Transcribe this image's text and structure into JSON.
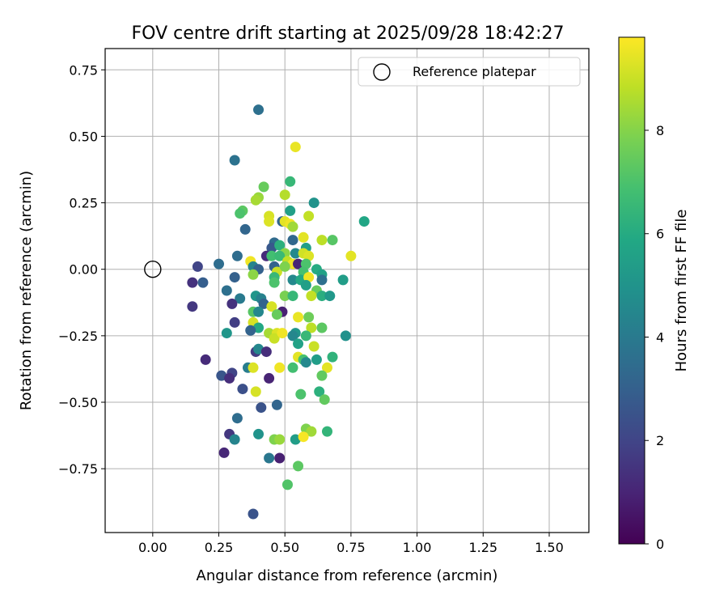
{
  "chart_data": {
    "type": "scatter",
    "title": "FOV centre drift starting at 2025/09/28 18:42:27",
    "xlabel": "Angular distance from reference (arcmin)",
    "ylabel": "Rotation from reference (arcmin)",
    "colorbar_label": "Hours from first FF file",
    "xlim": [
      -0.18,
      1.65
    ],
    "ylim": [
      -0.99,
      0.83
    ],
    "xticks": [
      "0.00",
      "0.25",
      "0.50",
      "0.75",
      "1.00",
      "1.25",
      "1.50"
    ],
    "xtick_values": [
      0,
      0.25,
      0.5,
      0.75,
      1.0,
      1.25,
      1.5
    ],
    "yticks": [
      "0.75",
      "0.50",
      "0.25",
      "0.00",
      "−0.25",
      "−0.50",
      "−0.75"
    ],
    "ytick_values": [
      0.75,
      0.5,
      0.25,
      0,
      -0.25,
      -0.5,
      -0.75
    ],
    "colorbar_range": [
      0,
      9.8
    ],
    "colorbar_ticks": [
      "0",
      "2",
      "4",
      "6",
      "8"
    ],
    "colorbar_tick_values": [
      0,
      2,
      4,
      6,
      8
    ],
    "grid": true,
    "legend": {
      "label": "Reference platepar",
      "position": "top-right"
    },
    "reference_point": {
      "x": 0.0,
      "y": 0.0
    },
    "points": [
      [
        0.4,
        0.6,
        3.6
      ],
      [
        0.31,
        0.41,
        3.7
      ],
      [
        0.54,
        0.46,
        9.5
      ],
      [
        0.52,
        0.33,
        6.5
      ],
      [
        0.42,
        0.31,
        7.5
      ],
      [
        0.4,
        0.27,
        8.3
      ],
      [
        0.39,
        0.26,
        8.5
      ],
      [
        0.5,
        0.28,
        8.7
      ],
      [
        0.61,
        0.25,
        5.0
      ],
      [
        0.34,
        0.22,
        7.3
      ],
      [
        0.33,
        0.21,
        7.0
      ],
      [
        0.52,
        0.22,
        5.5
      ],
      [
        0.44,
        0.2,
        9.2
      ],
      [
        0.59,
        0.2,
        8.9
      ],
      [
        0.49,
        0.18,
        3.2
      ],
      [
        0.5,
        0.18,
        9.4
      ],
      [
        0.52,
        0.17,
        9.6
      ],
      [
        0.53,
        0.16,
        8.4
      ],
      [
        0.44,
        0.18,
        9.3
      ],
      [
        0.35,
        0.15,
        3.2
      ],
      [
        0.8,
        0.18,
        5.8
      ],
      [
        0.57,
        0.12,
        9.4
      ],
      [
        0.64,
        0.11,
        8.8
      ],
      [
        0.68,
        0.11,
        7.2
      ],
      [
        0.53,
        0.11,
        3.3
      ],
      [
        0.46,
        0.1,
        3.4
      ],
      [
        0.45,
        0.08,
        2.7
      ],
      [
        0.48,
        0.09,
        6.2
      ],
      [
        0.58,
        0.08,
        5.5
      ],
      [
        0.5,
        0.06,
        8.1
      ],
      [
        0.54,
        0.06,
        4.6
      ],
      [
        0.57,
        0.06,
        9.1
      ],
      [
        0.59,
        0.05,
        9.3
      ],
      [
        0.75,
        0.05,
        9.4
      ],
      [
        0.32,
        0.05,
        3.5
      ],
      [
        0.37,
        0.03,
        9.6
      ],
      [
        0.43,
        0.05,
        1.2
      ],
      [
        0.45,
        0.05,
        6.8
      ],
      [
        0.48,
        0.05,
        6.6
      ],
      [
        0.46,
        0.01,
        3.1
      ],
      [
        0.51,
        0.03,
        8.9
      ],
      [
        0.53,
        0.02,
        9.6
      ],
      [
        0.55,
        0.02,
        1.0
      ],
      [
        0.58,
        0.02,
        7.0
      ],
      [
        0.62,
        0.0,
        6.0
      ],
      [
        0.38,
        0.01,
        4.4
      ],
      [
        0.47,
        -0.01,
        9.0
      ],
      [
        0.5,
        0.01,
        7.9
      ],
      [
        0.4,
        0.0,
        3.0
      ],
      [
        0.25,
        0.02,
        3.5
      ],
      [
        0.17,
        0.01,
        2.0
      ],
      [
        0.57,
        -0.01,
        6.9
      ],
      [
        0.64,
        -0.02,
        5.6
      ],
      [
        0.38,
        -0.02,
        8.1
      ],
      [
        0.46,
        -0.03,
        6.5
      ],
      [
        0.53,
        -0.04,
        4.6
      ],
      [
        0.56,
        -0.04,
        5.9
      ],
      [
        0.59,
        -0.03,
        9.6
      ],
      [
        0.64,
        -0.04,
        3.6
      ],
      [
        0.72,
        -0.04,
        5.4
      ],
      [
        0.15,
        -0.05,
        1.4
      ],
      [
        0.19,
        -0.05,
        2.9
      ],
      [
        0.31,
        -0.03,
        3.0
      ],
      [
        0.46,
        -0.05,
        7.0
      ],
      [
        0.58,
        -0.06,
        5.5
      ],
      [
        0.62,
        -0.08,
        7.5
      ],
      [
        0.28,
        -0.08,
        3.6
      ],
      [
        0.39,
        -0.1,
        5.1
      ],
      [
        0.41,
        -0.11,
        4.3
      ],
      [
        0.5,
        -0.1,
        7.8
      ],
      [
        0.53,
        -0.1,
        6.5
      ],
      [
        0.6,
        -0.1,
        8.9
      ],
      [
        0.64,
        -0.1,
        6.1
      ],
      [
        0.67,
        -0.1,
        5.2
      ],
      [
        0.33,
        -0.11,
        4.0
      ],
      [
        0.42,
        -0.13,
        3.1
      ],
      [
        0.3,
        -0.13,
        1.4
      ],
      [
        0.15,
        -0.14,
        1.6
      ],
      [
        0.45,
        -0.14,
        9.2
      ],
      [
        0.38,
        -0.16,
        7.2
      ],
      [
        0.4,
        -0.16,
        4.5
      ],
      [
        0.49,
        -0.16,
        0.9
      ],
      [
        0.47,
        -0.17,
        7.5
      ],
      [
        0.55,
        -0.18,
        9.5
      ],
      [
        0.59,
        -0.18,
        7.6
      ],
      [
        0.38,
        -0.2,
        9.2
      ],
      [
        0.31,
        -0.2,
        1.8
      ],
      [
        0.4,
        -0.22,
        5.9
      ],
      [
        0.37,
        -0.23,
        3.1
      ],
      [
        0.28,
        -0.24,
        5.1
      ],
      [
        0.44,
        -0.24,
        8.5
      ],
      [
        0.47,
        -0.24,
        9.3
      ],
      [
        0.54,
        -0.24,
        5.1
      ],
      [
        0.6,
        -0.22,
        8.8
      ],
      [
        0.64,
        -0.22,
        7.3
      ],
      [
        0.73,
        -0.25,
        4.9
      ],
      [
        0.53,
        -0.25,
        4.5
      ],
      [
        0.58,
        -0.25,
        6.5
      ],
      [
        0.46,
        -0.26,
        9.0
      ],
      [
        0.49,
        -0.24,
        9.6
      ],
      [
        0.55,
        -0.28,
        5.6
      ],
      [
        0.61,
        -0.29,
        9.0
      ],
      [
        0.39,
        -0.31,
        1.7
      ],
      [
        0.4,
        -0.3,
        4.5
      ],
      [
        0.43,
        -0.31,
        1.3
      ],
      [
        0.55,
        -0.33,
        9.4
      ],
      [
        0.57,
        -0.34,
        6.9
      ],
      [
        0.58,
        -0.35,
        4.6
      ],
      [
        0.62,
        -0.34,
        5.4
      ],
      [
        0.68,
        -0.33,
        6.3
      ],
      [
        0.2,
        -0.34,
        1.2
      ],
      [
        0.36,
        -0.37,
        4.1
      ],
      [
        0.38,
        -0.37,
        9.3
      ],
      [
        0.48,
        -0.37,
        9.6
      ],
      [
        0.53,
        -0.37,
        6.8
      ],
      [
        0.66,
        -0.37,
        9.4
      ],
      [
        0.3,
        -0.39,
        2.0
      ],
      [
        0.26,
        -0.4,
        2.6
      ],
      [
        0.29,
        -0.41,
        1.3
      ],
      [
        0.44,
        -0.41,
        1.0
      ],
      [
        0.64,
        -0.4,
        7.4
      ],
      [
        0.34,
        -0.45,
        2.4
      ],
      [
        0.39,
        -0.46,
        9.2
      ],
      [
        0.56,
        -0.47,
        7.0
      ],
      [
        0.63,
        -0.46,
        6.2
      ],
      [
        0.65,
        -0.49,
        7.4
      ],
      [
        0.41,
        -0.52,
        2.5
      ],
      [
        0.47,
        -0.51,
        3.2
      ],
      [
        0.32,
        -0.56,
        3.5
      ],
      [
        0.58,
        -0.6,
        7.9
      ],
      [
        0.6,
        -0.61,
        8.4
      ],
      [
        0.66,
        -0.61,
        6.4
      ],
      [
        0.29,
        -0.62,
        1.6
      ],
      [
        0.31,
        -0.64,
        4.4
      ],
      [
        0.4,
        -0.62,
        5.0
      ],
      [
        0.46,
        -0.64,
        7.9
      ],
      [
        0.48,
        -0.64,
        8.3
      ],
      [
        0.54,
        -0.64,
        5.4
      ],
      [
        0.57,
        -0.63,
        9.7
      ],
      [
        0.27,
        -0.69,
        1.1
      ],
      [
        0.44,
        -0.71,
        3.9
      ],
      [
        0.48,
        -0.71,
        0.9
      ],
      [
        0.55,
        -0.74,
        7.3
      ],
      [
        0.51,
        -0.81,
        7.1
      ],
      [
        0.38,
        -0.92,
        2.5
      ]
    ]
  }
}
